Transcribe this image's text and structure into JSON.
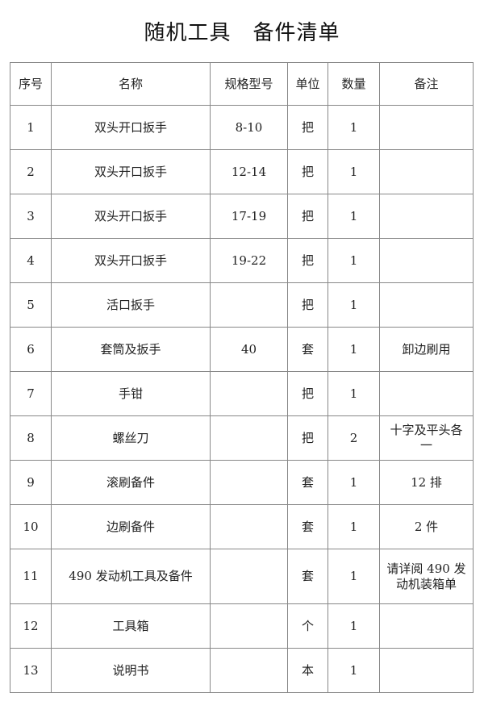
{
  "title": "随机工具　备件清单",
  "headers": [
    "序号",
    "名称",
    "规格型号",
    "单位",
    "数量",
    "备注"
  ],
  "rows": [
    [
      "1",
      "双头开口扳手",
      "8-10",
      "把",
      "1",
      ""
    ],
    [
      "2",
      "双头开口扳手",
      "12-14",
      "把",
      "1",
      ""
    ],
    [
      "3",
      "双头开口扳手",
      "17-19",
      "把",
      "1",
      ""
    ],
    [
      "4",
      "双头开口扳手",
      "19-22",
      "把",
      "1",
      ""
    ],
    [
      "5",
      "活口扳手",
      "",
      "把",
      "1",
      ""
    ],
    [
      "6",
      "套筒及扳手",
      "40",
      "套",
      "1",
      "卸边刷用"
    ],
    [
      "7",
      "手钳",
      "",
      "把",
      "1",
      ""
    ],
    [
      "8",
      "螺丝刀",
      "",
      "把",
      "2",
      "十字及平头各一"
    ],
    [
      "9",
      "滚刷备件",
      "",
      "套",
      "1",
      "12 排"
    ],
    [
      "10",
      "边刷备件",
      "",
      "套",
      "1",
      "2 件"
    ],
    [
      "11",
      "490 发动机工具及备件",
      "",
      "套",
      "1",
      "请详阅 490 发动机装箱单"
    ],
    [
      "12",
      "工具箱",
      "",
      "个",
      "1",
      ""
    ],
    [
      "13",
      "说明书",
      "",
      "本",
      "1",
      ""
    ]
  ]
}
